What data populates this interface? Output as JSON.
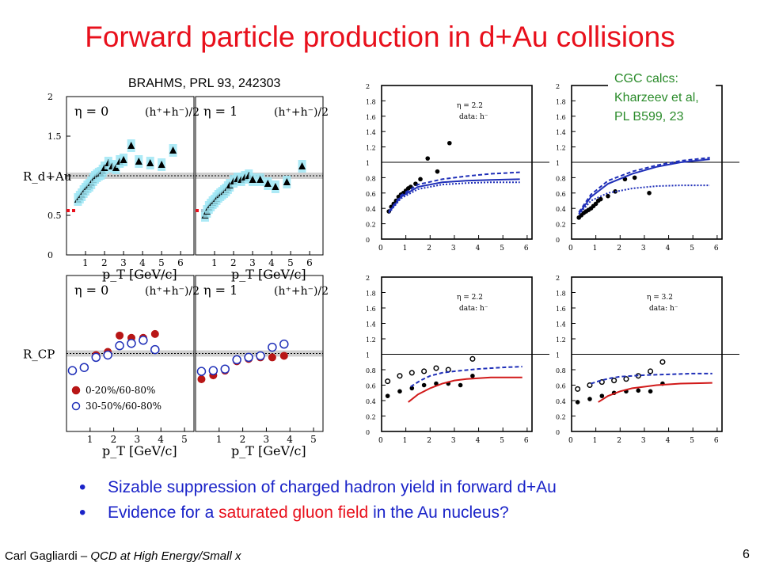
{
  "title": "Forward particle production in d+Au collisions",
  "reference": "BRAHMS, PRL 93, 242303",
  "cgc_note": [
    "CGC calcs:",
    "Kharzeev et al,",
    "PL B599, 23"
  ],
  "bullets": [
    {
      "pre": "Sizable suppression of charged hadron yield in forward d+Au",
      "red": "",
      "post": ""
    },
    {
      "pre": "Evidence for a ",
      "red": "saturated gluon field",
      "post": " in the Au nucleus?"
    }
  ],
  "footer": {
    "author": "Carl Gagliardi",
    "dash": " – ",
    "talk": "QCD at High Energy/Small x"
  },
  "page_number": "6",
  "colors": {
    "title": "#e8101c",
    "bullets": "#1a23c8",
    "cgc": "#2a8b2a",
    "theory_blue": "#1f2fb8",
    "theory_red": "#d11a1a",
    "band": "#9fe6f5"
  },
  "chart_data": [
    {
      "type": "scatter",
      "panel": "RdAu eta=0",
      "eta_label": "η = 0",
      "ylabel": "R_d+Au",
      "xlabel": "p_T [GeV/c]",
      "xlim": [
        0,
        6.7
      ],
      "ylim": [
        0,
        2
      ],
      "xticks": [
        "1",
        "2",
        "3",
        "4",
        "5",
        "6"
      ],
      "yticks": [
        "0",
        "0.5",
        "1",
        "1.5",
        "2"
      ],
      "legend": "(h⁺+h⁻)/2",
      "series": [
        {
          "marker": "triangle",
          "x": [
            0.6,
            0.7,
            0.8,
            0.9,
            1.0,
            1.1,
            1.2,
            1.3,
            1.4,
            1.5,
            1.6,
            1.7,
            1.8,
            1.9,
            2.0,
            2.2,
            2.4,
            2.6,
            2.8,
            3.0,
            3.4,
            3.8,
            4.4,
            5.0,
            5.6
          ],
          "y": [
            0.7,
            0.73,
            0.76,
            0.8,
            0.83,
            0.86,
            0.88,
            0.91,
            0.95,
            0.98,
            1.0,
            1.02,
            1.03,
            1.06,
            1.1,
            1.16,
            1.12,
            1.1,
            1.18,
            1.2,
            1.38,
            1.18,
            1.16,
            1.14,
            1.32
          ]
        }
      ]
    },
    {
      "type": "scatter",
      "panel": "RdAu eta=1",
      "eta_label": "η = 1",
      "xlabel": "p_T [GeV/c]",
      "xlim": [
        0,
        6.7
      ],
      "ylim": [
        0,
        2
      ],
      "xticks": [
        "1",
        "2",
        "3",
        "4",
        "5",
        "6"
      ],
      "legend": "(h⁺+h⁻)/2",
      "series": [
        {
          "marker": "triangle",
          "x": [
            0.5,
            0.6,
            0.7,
            0.8,
            0.9,
            1.0,
            1.1,
            1.2,
            1.3,
            1.4,
            1.5,
            1.6,
            1.7,
            1.8,
            2.0,
            2.2,
            2.4,
            2.6,
            2.8,
            3.0,
            3.4,
            3.8,
            4.2,
            4.8,
            5.6
          ],
          "y": [
            0.5,
            0.55,
            0.6,
            0.63,
            0.66,
            0.68,
            0.71,
            0.74,
            0.76,
            0.78,
            0.8,
            0.82,
            0.85,
            0.88,
            0.93,
            0.96,
            0.95,
            0.98,
            1.0,
            0.95,
            0.95,
            0.9,
            0.86,
            0.92,
            1.12
          ]
        }
      ]
    },
    {
      "type": "scatter",
      "panel": "RCP eta=0",
      "eta_label": "η = 0",
      "ylabel": "R_CP",
      "xlabel": "p_T [GeV/c]",
      "xlim": [
        0,
        5.4
      ],
      "ylim": [
        0,
        2
      ],
      "xticks": [
        "1",
        "2",
        "3",
        "4",
        "5"
      ],
      "legend": "(h⁺+h⁻)/2",
      "legend_entries": [
        "0-20%/60-80%",
        "30-50%/60-80%"
      ],
      "series": [
        {
          "name": "0-20%/60-80%",
          "marker": "filled-circle",
          "x": [
            0.25,
            0.75,
            1.25,
            1.75,
            2.25,
            2.75,
            3.25,
            3.75
          ],
          "y": [
            0.78,
            0.82,
            0.98,
            1.02,
            1.23,
            1.2,
            1.2,
            1.25
          ]
        },
        {
          "name": "30-50%/60-80%",
          "marker": "open-circle",
          "x": [
            0.25,
            0.75,
            1.25,
            1.75,
            2.25,
            2.75,
            3.25,
            3.75
          ],
          "y": [
            0.78,
            0.82,
            0.95,
            0.98,
            1.1,
            1.13,
            1.17,
            1.05
          ]
        }
      ]
    },
    {
      "type": "scatter",
      "panel": "RCP eta=1",
      "eta_label": "η = 1",
      "xlabel": "p_T [GeV/c]",
      "xlim": [
        0,
        5.4
      ],
      "ylim": [
        0,
        2
      ],
      "xticks": [
        "1",
        "2",
        "3",
        "4",
        "5"
      ],
      "legend": "(h⁺+h⁻)/2",
      "series": [
        {
          "marker": "filled-circle",
          "x": [
            0.25,
            0.75,
            1.25,
            1.75,
            2.25,
            2.75,
            3.25,
            3.75
          ],
          "y": [
            0.67,
            0.72,
            0.78,
            0.9,
            0.93,
            0.95,
            0.95,
            0.97
          ]
        },
        {
          "marker": "open-circle",
          "x": [
            0.25,
            0.75,
            1.25,
            1.75,
            2.25,
            2.75,
            3.25,
            3.75
          ],
          "y": [
            0.77,
            0.78,
            0.8,
            0.92,
            0.95,
            0.97,
            1.08,
            1.12
          ]
        }
      ]
    },
    {
      "type": "scatter",
      "panel": "CGC RdAu eta=2.2",
      "eta_label": "η = 2.2",
      "data_label": "data: h⁻",
      "xlim": [
        0,
        6.2
      ],
      "ylim": [
        0,
        2
      ],
      "xticks": [
        "0",
        "1",
        "2",
        "3",
        "4",
        "5",
        "6"
      ],
      "yticks": [
        "0",
        "0.2",
        "0.4",
        "0.6",
        "0.8",
        "1",
        "1.2",
        "1.4",
        "1.6",
        "1.8",
        "2"
      ],
      "series": [
        {
          "marker": "filled-circle",
          "x": [
            0.3,
            0.4,
            0.5,
            0.6,
            0.7,
            0.8,
            0.9,
            1.0,
            1.1,
            1.2,
            1.4,
            1.6,
            1.9,
            2.3,
            2.8
          ],
          "y": [
            0.36,
            0.42,
            0.46,
            0.5,
            0.55,
            0.58,
            0.6,
            0.63,
            0.66,
            0.68,
            0.72,
            0.78,
            1.05,
            0.88,
            1.25
          ]
        },
        {
          "style": "solid-blue",
          "x": [
            0.3,
            0.8,
            1.5,
            2.5,
            3.5,
            4.5,
            5.7
          ],
          "y": [
            0.35,
            0.55,
            0.68,
            0.74,
            0.76,
            0.77,
            0.78
          ]
        },
        {
          "style": "dashed-blue",
          "x": [
            0.3,
            0.8,
            1.5,
            2.5,
            3.5,
            4.5,
            5.7
          ],
          "y": [
            0.36,
            0.57,
            0.71,
            0.78,
            0.82,
            0.85,
            0.87
          ]
        },
        {
          "style": "dotted-blue",
          "x": [
            0.3,
            0.8,
            1.5,
            2.5,
            3.5,
            4.5,
            5.7
          ],
          "y": [
            0.34,
            0.53,
            0.65,
            0.71,
            0.73,
            0.74,
            0.74
          ]
        }
      ]
    },
    {
      "type": "scatter",
      "panel": "CGC RdAu eta=3.2",
      "xlim": [
        0,
        6.2
      ],
      "ylim": [
        0,
        2
      ],
      "xticks": [
        "0",
        "1",
        "2",
        "3",
        "4",
        "5",
        "6"
      ],
      "yticks": [
        "0",
        "0.2",
        "0.4",
        "0.6",
        "0.8",
        "1",
        "1.2",
        "1.4",
        "1.6",
        "1.8",
        "2"
      ],
      "series": [
        {
          "marker": "filled-circle",
          "x": [
            0.3,
            0.4,
            0.5,
            0.6,
            0.7,
            0.8,
            0.9,
            1.0,
            1.1,
            1.2,
            1.5,
            1.8,
            2.2,
            2.6,
            3.2
          ],
          "y": [
            0.28,
            0.31,
            0.34,
            0.36,
            0.38,
            0.4,
            0.43,
            0.46,
            0.5,
            0.52,
            0.56,
            0.62,
            0.78,
            0.8,
            0.6
          ]
        },
        {
          "style": "solid-blue",
          "x": [
            0.3,
            0.8,
            1.5,
            2.5,
            3.5,
            4.5,
            5.7
          ],
          "y": [
            0.33,
            0.55,
            0.72,
            0.85,
            0.94,
            1.0,
            1.04
          ]
        },
        {
          "style": "dashed-blue",
          "x": [
            0.3,
            0.8,
            1.5,
            2.5,
            3.5,
            4.5,
            5.7
          ],
          "y": [
            0.35,
            0.58,
            0.76,
            0.88,
            0.96,
            1.02,
            1.06
          ]
        },
        {
          "style": "dotted-blue",
          "x": [
            0.3,
            0.8,
            1.5,
            2.5,
            3.5,
            4.5,
            5.7
          ],
          "y": [
            0.32,
            0.5,
            0.6,
            0.66,
            0.69,
            0.7,
            0.7
          ]
        }
      ]
    },
    {
      "type": "scatter",
      "panel": "CGC RCP eta=2.2",
      "eta_label": "η = 2.2",
      "data_label": "data: h⁻",
      "xlim": [
        0,
        6.2
      ],
      "ylim": [
        0,
        2
      ],
      "xticks": [
        "0",
        "1",
        "2",
        "3",
        "4",
        "5",
        "6"
      ],
      "yticks": [
        "0",
        "0.2",
        "0.4",
        "0.6",
        "0.8",
        "1",
        "1.2",
        "1.4",
        "1.6",
        "1.8",
        "2"
      ],
      "series": [
        {
          "marker": "open-circle",
          "x": [
            0.25,
            0.75,
            1.25,
            1.75,
            2.25,
            2.75,
            3.75
          ],
          "y": [
            0.65,
            0.72,
            0.76,
            0.78,
            0.82,
            0.8,
            0.94
          ]
        },
        {
          "marker": "filled-circle",
          "x": [
            0.25,
            0.75,
            1.25,
            1.75,
            2.25,
            2.75,
            3.25,
            3.75
          ],
          "y": [
            0.46,
            0.52,
            0.56,
            0.6,
            0.62,
            0.62,
            0.6,
            0.72
          ]
        },
        {
          "style": "solid-red",
          "x": [
            1.1,
            1.5,
            2.0,
            2.5,
            3.0,
            3.5,
            4.5,
            5.8
          ],
          "y": [
            0.38,
            0.48,
            0.56,
            0.62,
            0.66,
            0.68,
            0.7,
            0.7
          ]
        },
        {
          "style": "dashed-blue",
          "x": [
            1.2,
            1.6,
            2.0,
            2.5,
            3.0,
            4.0,
            5.0,
            5.8
          ],
          "y": [
            0.58,
            0.66,
            0.72,
            0.76,
            0.78,
            0.81,
            0.83,
            0.84
          ]
        }
      ]
    },
    {
      "type": "scatter",
      "panel": "CGC RCP eta=3.2",
      "eta_label": "η = 3.2",
      "data_label": "data: h⁻",
      "xlim": [
        0,
        6.2
      ],
      "ylim": [
        0,
        2
      ],
      "xticks": [
        "0",
        "1",
        "2",
        "3",
        "4",
        "5",
        "6"
      ],
      "yticks": [
        "0",
        "0.2",
        "0.4",
        "0.6",
        "0.8",
        "1",
        "1.2",
        "1.4",
        "1.6",
        "1.8",
        "2"
      ],
      "series": [
        {
          "marker": "open-circle",
          "x": [
            0.25,
            0.75,
            1.25,
            1.75,
            2.25,
            2.75,
            3.25,
            3.75
          ],
          "y": [
            0.55,
            0.6,
            0.64,
            0.66,
            0.68,
            0.72,
            0.78,
            0.9
          ]
        },
        {
          "marker": "filled-circle",
          "x": [
            0.25,
            0.75,
            1.25,
            1.75,
            2.25,
            2.75,
            3.25,
            3.75
          ],
          "y": [
            0.38,
            0.42,
            0.46,
            0.5,
            0.52,
            0.53,
            0.52,
            0.62
          ]
        },
        {
          "style": "solid-red",
          "x": [
            1.1,
            1.5,
            2.0,
            2.5,
            3.0,
            3.5,
            4.5,
            5.8
          ],
          "y": [
            0.38,
            0.46,
            0.52,
            0.56,
            0.58,
            0.6,
            0.62,
            0.63
          ]
        },
        {
          "style": "dashed-blue",
          "x": [
            0.8,
            1.2,
            1.6,
            2.0,
            2.5,
            3.0,
            4.0,
            5.0,
            5.8
          ],
          "y": [
            0.62,
            0.66,
            0.69,
            0.71,
            0.72,
            0.73,
            0.74,
            0.75,
            0.75
          ]
        }
      ]
    }
  ]
}
